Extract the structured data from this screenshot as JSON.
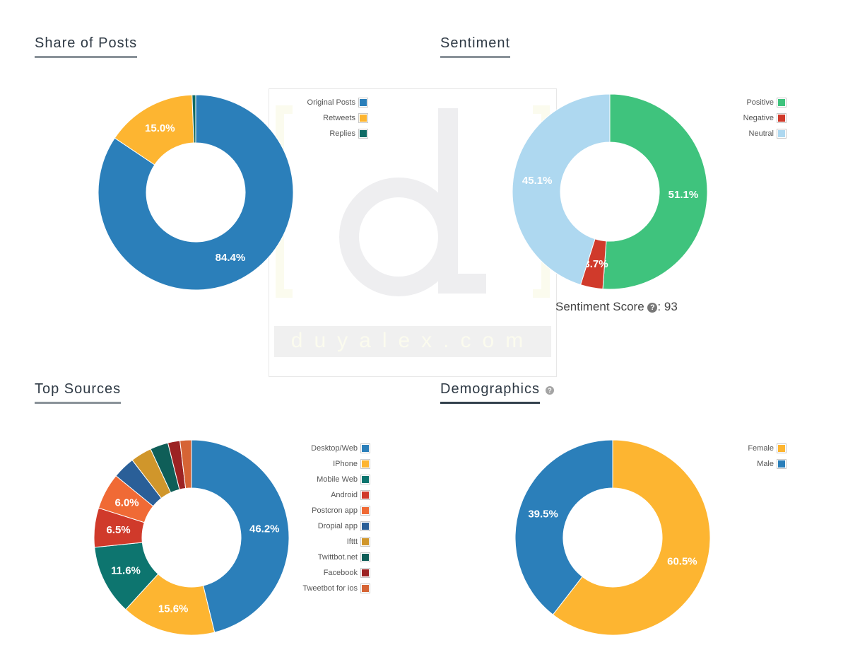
{
  "watermark": {
    "text": "duyalex.com"
  },
  "panels": {
    "share": {
      "title": "Share of Posts",
      "chart_data": {
        "type": "pie",
        "title": "Share of Posts",
        "categories": [
          "Original Posts",
          "Retweets",
          "Replies"
        ],
        "values": [
          84.4,
          15.0,
          0.6
        ],
        "value_labels": [
          "84.4%",
          "15.0%",
          ""
        ],
        "colors": [
          "#2b7fba",
          "#fdb531",
          "#0f6b65"
        ],
        "legend_position": "top-right"
      }
    },
    "sentiment": {
      "title": "Sentiment",
      "score_label": "Sentiment Score",
      "score_value": ": 93",
      "chart_data": {
        "type": "pie",
        "title": "Sentiment",
        "categories": [
          "Positive",
          "Negative",
          "Neutral"
        ],
        "values": [
          51.1,
          3.7,
          45.1
        ],
        "value_labels": [
          "51.1%",
          "3.7%",
          "45.1%"
        ],
        "colors": [
          "#3fc37d",
          "#d03a2b",
          "#aed8f0"
        ],
        "legend_position": "top-right"
      }
    },
    "sources": {
      "title": "Top Sources",
      "chart_data": {
        "type": "pie",
        "title": "Top Sources",
        "categories": [
          "Desktop/Web",
          "IPhone",
          "Mobile Web",
          "Android",
          "Postcron app",
          "Dropial app",
          "Ifttt",
          "Twittbot.net",
          "Facebook",
          "Tweetbot for ios"
        ],
        "values": [
          46.2,
          15.6,
          11.6,
          6.5,
          6.0,
          3.7,
          3.5,
          3.0,
          2.0,
          1.9
        ],
        "value_labels": [
          "46.2%",
          "15.6%",
          "11.6%",
          "6.5%",
          "6.0%",
          "",
          "",
          "",
          "",
          ""
        ],
        "colors": [
          "#2b7fba",
          "#fdb531",
          "#0d756f",
          "#d03a2b",
          "#f06a35",
          "#2a5f98",
          "#d0962b",
          "#0f5e58",
          "#9c2323",
          "#d66435"
        ],
        "legend_position": "top-right"
      }
    },
    "demographics": {
      "title": "Demographics",
      "help_icon": "question-circle-icon",
      "chart_data": {
        "type": "pie",
        "title": "Demographics",
        "categories": [
          "Female",
          "Male"
        ],
        "values": [
          60.5,
          39.5
        ],
        "value_labels": [
          "60.5%",
          "39.5%"
        ],
        "colors": [
          "#fdb531",
          "#2b7fba"
        ],
        "legend_position": "top-right"
      }
    }
  }
}
